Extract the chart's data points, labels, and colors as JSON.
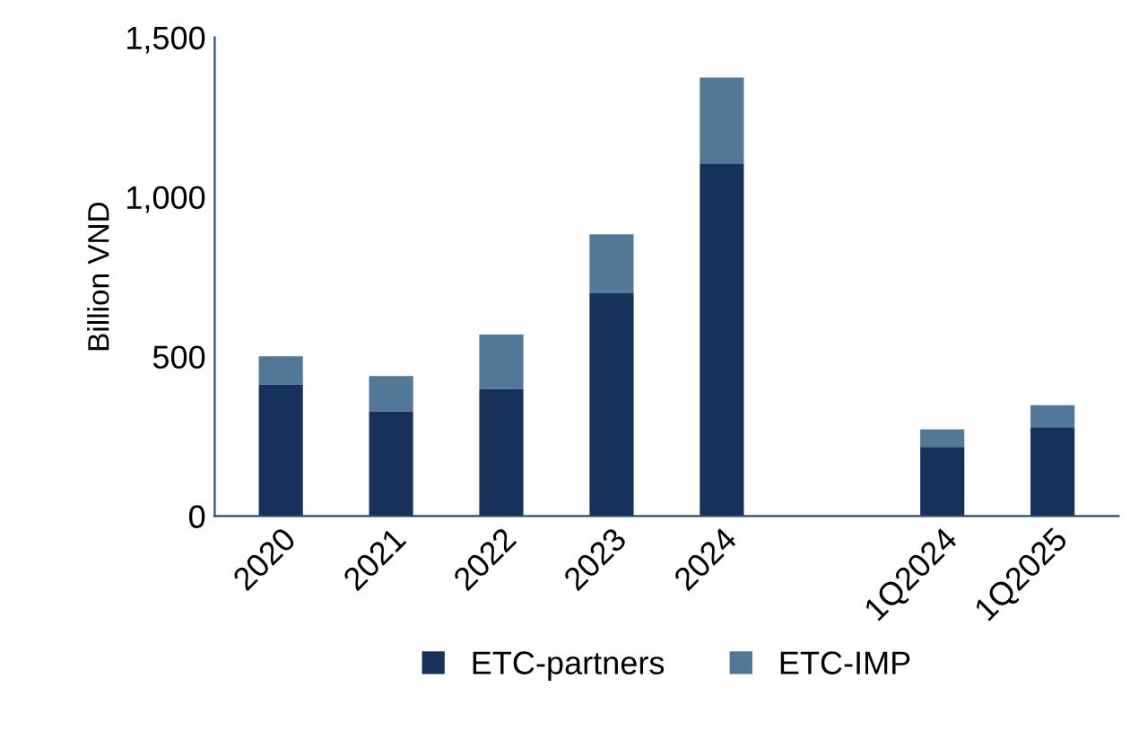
{
  "chart_data": {
    "type": "bar",
    "stacked": true,
    "ylabel": "Billion VND",
    "categories": [
      "2020",
      "2021",
      "2022",
      "2023",
      "2024",
      null,
      "1Q2024",
      "1Q2025"
    ],
    "series": [
      {
        "name": "ETC-partners",
        "color": "#17325a",
        "values": [
          412,
          329,
          398,
          698,
          1105,
          null,
          217,
          279
        ]
      },
      {
        "name": "ETC-IMP",
        "color": "#527898",
        "values": [
          89,
          110,
          171,
          185,
          269,
          null,
          55,
          69
        ]
      }
    ],
    "ylim": [
      0,
      1500
    ],
    "yticks": [
      0,
      {
        "value": 500,
        "label": "500"
      },
      {
        "value": 1000,
        "label": "1,000"
      },
      {
        "value": 1500,
        "label": "1,500"
      }
    ],
    "grid": false,
    "legend": "bottom"
  }
}
